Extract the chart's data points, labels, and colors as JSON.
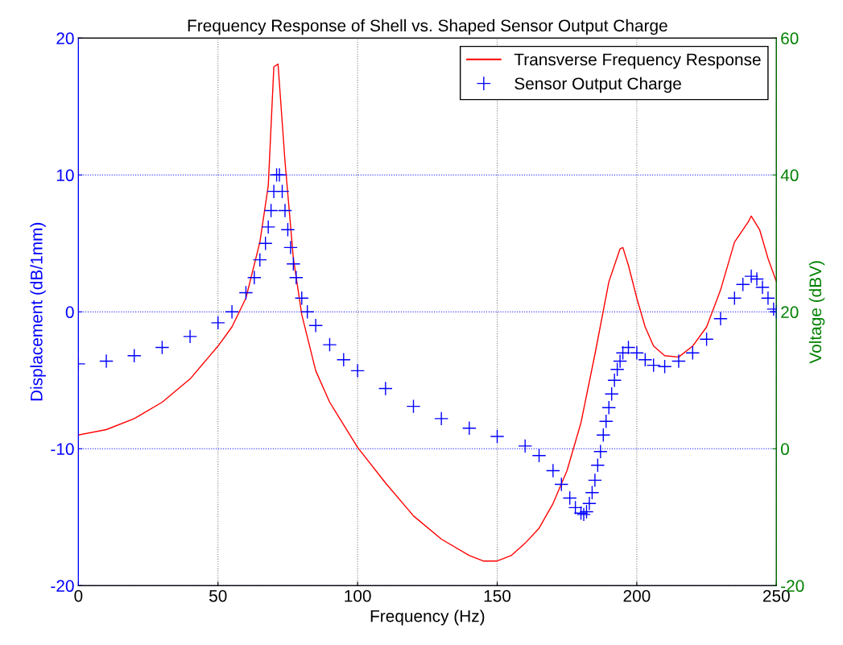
{
  "chart_data": {
    "type": "line",
    "title": "Frequency Response of Shell vs. Shaped Sensor Output Charge",
    "xlabel": "Frequency (Hz)",
    "ylabel": "Displacement (dB/1mm)",
    "y2label": "Voltage (dBV)",
    "xlim": [
      0,
      250
    ],
    "xticks": [
      0,
      50,
      100,
      150,
      200,
      250
    ],
    "ylim": [
      -20,
      20
    ],
    "yticks": [
      -20,
      -10,
      0,
      10,
      20
    ],
    "y2lim": [
      -20,
      60
    ],
    "y2ticks": [
      -20,
      0,
      20,
      40,
      60
    ],
    "grid": true,
    "legend": "top right",
    "series": [
      {
        "name": "Transverse Frequency Response",
        "color": "#ff0000",
        "marker": "none",
        "line_style": "solid",
        "x": [
          0,
          10,
          20,
          30,
          40,
          50,
          55,
          60,
          65,
          68,
          70,
          71.5,
          74,
          77,
          80,
          85,
          90,
          100,
          110,
          120,
          130,
          140,
          145,
          150,
          155,
          160,
          165,
          170,
          175,
          180,
          185,
          190,
          194,
          195,
          197,
          200,
          203,
          206,
          210,
          215,
          220,
          225,
          230,
          235,
          240,
          241,
          244,
          247,
          250
        ],
        "values": [
          -9,
          -8.6,
          -7.8,
          -6.6,
          -4.9,
          -2.5,
          -1.1,
          1,
          5.1,
          9.2,
          17.9,
          18.1,
          11,
          3.9,
          -0.2,
          -4.3,
          -6.6,
          -9.9,
          -12.5,
          -14.9,
          -16.6,
          -17.8,
          -18.2,
          -18.2,
          -17.8,
          -16.9,
          -15.8,
          -14,
          -11.6,
          -8.1,
          -3.1,
          2.2,
          4.6,
          4.7,
          3.4,
          1,
          -1.1,
          -2.5,
          -3.2,
          -3.3,
          -2.5,
          -1.1,
          1.6,
          5.1,
          6.6,
          7,
          6,
          3.9,
          2.2
        ]
      },
      {
        "name": "Sensor Output Charge",
        "color": "#0000ff",
        "type": "scatter",
        "marker": "cross",
        "axis": "y2",
        "x": [
          0,
          10,
          20,
          30,
          40,
          50,
          55,
          60,
          63,
          65,
          67,
          68,
          69,
          70,
          71,
          72,
          73,
          74,
          75,
          76,
          77,
          78,
          80,
          82,
          85,
          90,
          95,
          100,
          110,
          120,
          130,
          140,
          150,
          160,
          165,
          170,
          173,
          176,
          178,
          180,
          181,
          182,
          183,
          184,
          185,
          186,
          187,
          188,
          189,
          190,
          191,
          192,
          193,
          194,
          195,
          197,
          200,
          203,
          206,
          210,
          215,
          220,
          225,
          230,
          235,
          238,
          241,
          243,
          245,
          247,
          249,
          250
        ],
        "values": [
          12.4,
          12.8,
          13.6,
          14.8,
          16.4,
          18.4,
          20,
          22.8,
          25,
          27.6,
          30,
          32.4,
          34.8,
          37.6,
          40,
          40,
          37.6,
          34.8,
          32,
          29.4,
          27,
          25,
          22,
          20,
          18,
          15.2,
          13,
          11.4,
          8.8,
          6.2,
          4.4,
          3,
          1.8,
          0.4,
          -1,
          -3.2,
          -5.2,
          -7.2,
          -8.6,
          -9.4,
          -9.6,
          -9.2,
          -8,
          -6.4,
          -4.6,
          -2.4,
          -0.4,
          2,
          4,
          6,
          8,
          10,
          11.6,
          12.8,
          14,
          14.8,
          14,
          13,
          12.2,
          12,
          12.8,
          14,
          16,
          19,
          22,
          24,
          25.2,
          24.8,
          23.6,
          22,
          20.4,
          20
        ]
      }
    ]
  }
}
